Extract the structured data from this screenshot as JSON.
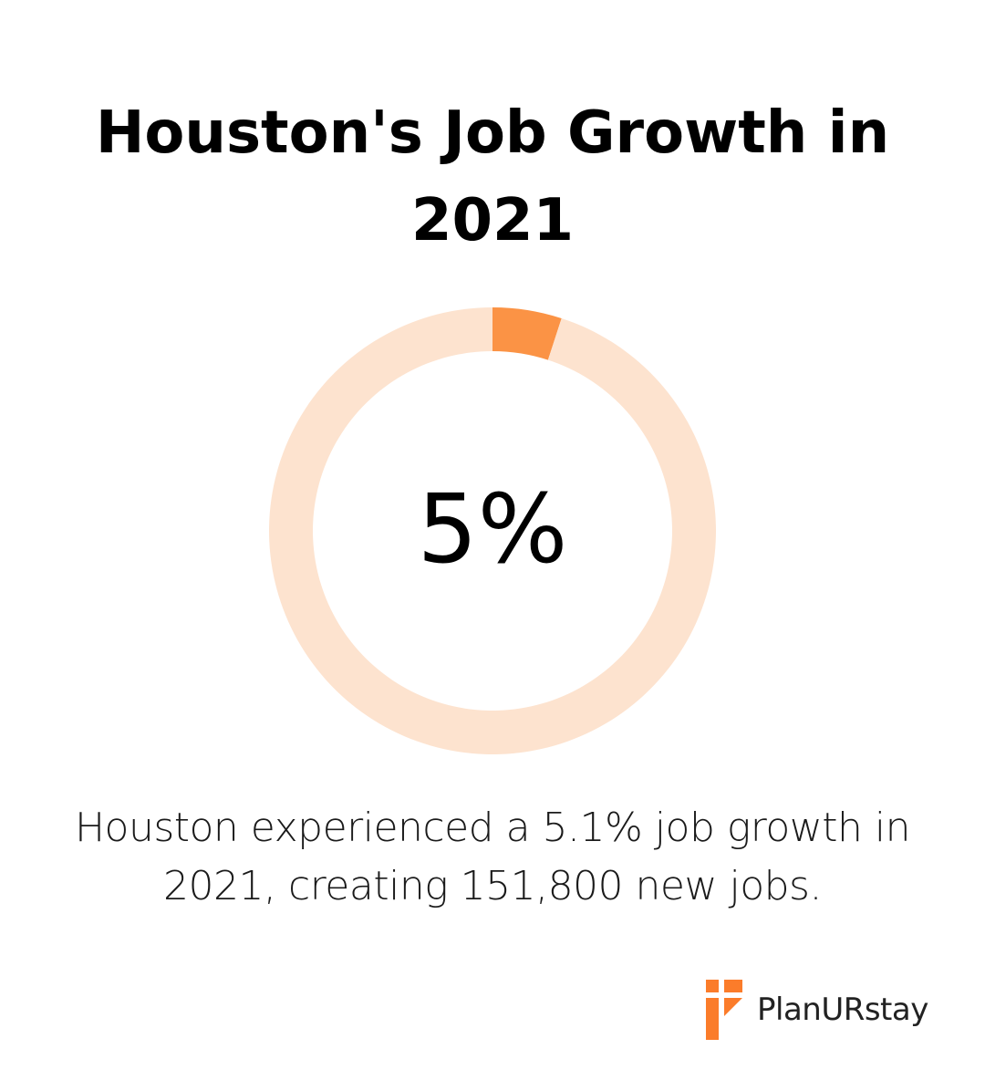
{
  "chart_data": {
    "type": "pie",
    "title": "Houston's Job Growth in 2021",
    "center_label": "5%",
    "slices": [
      {
        "value": 5,
        "color": "#fb9345"
      },
      {
        "value": 95,
        "color": "#fde3cf"
      }
    ],
    "caption": "Houston experienced a 5.1% job growth in 2021, creating 151,800 new jobs."
  },
  "brand": {
    "name": "PlanURstay",
    "accent_color": "#fb7c2a",
    "icon": "planurstay-logo-icon"
  }
}
